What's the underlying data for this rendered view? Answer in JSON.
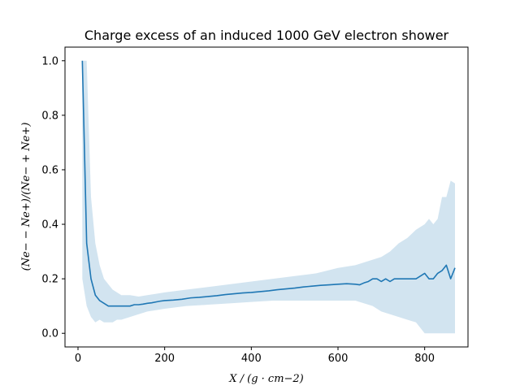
{
  "chart_data": {
    "type": "line",
    "title": "Charge excess of an induced 1000 GeV electron shower",
    "xlabel": "X / (g · cm−2)",
    "ylabel": "(Ne− − Ne+)/(Ne− + Ne+)",
    "xlim": [
      -30,
      900
    ],
    "ylim": [
      -0.05,
      1.05
    ],
    "xticks": [
      0,
      200,
      400,
      600,
      800
    ],
    "yticks": [
      0.0,
      0.2,
      0.4,
      0.6,
      0.8,
      1.0
    ],
    "xtick_labels": [
      "0",
      "200",
      "400",
      "600",
      "800"
    ],
    "ytick_labels": [
      "0.0",
      "0.2",
      "0.4",
      "0.6",
      "0.8",
      "1.0"
    ],
    "grid": false,
    "legend": "none",
    "colors": {
      "line": "#1f77b4",
      "band": "#1f77b4"
    },
    "series": [
      {
        "style": "line",
        "x": [
          10,
          20,
          30,
          40,
          50,
          60,
          70,
          80,
          90,
          100,
          110,
          120,
          130,
          140,
          150,
          160,
          170,
          180,
          190,
          200,
          220,
          240,
          260,
          280,
          300,
          320,
          340,
          360,
          380,
          400,
          420,
          440,
          460,
          480,
          500,
          520,
          540,
          560,
          580,
          600,
          620,
          640,
          650,
          660,
          670,
          680,
          690,
          700,
          710,
          720,
          730,
          740,
          750,
          760,
          770,
          780,
          790,
          800,
          810,
          820,
          830,
          840,
          850,
          860,
          870
        ],
        "y": [
          1.0,
          0.33,
          0.2,
          0.14,
          0.12,
          0.11,
          0.1,
          0.1,
          0.1,
          0.1,
          0.1,
          0.1,
          0.105,
          0.105,
          0.107,
          0.11,
          0.112,
          0.115,
          0.118,
          0.12,
          0.122,
          0.125,
          0.13,
          0.132,
          0.135,
          0.138,
          0.142,
          0.145,
          0.148,
          0.15,
          0.153,
          0.156,
          0.16,
          0.163,
          0.166,
          0.17,
          0.173,
          0.176,
          0.178,
          0.18,
          0.182,
          0.18,
          0.178,
          0.185,
          0.19,
          0.2,
          0.2,
          0.19,
          0.2,
          0.19,
          0.2,
          0.2,
          0.2,
          0.2,
          0.2,
          0.2,
          0.21,
          0.22,
          0.2,
          0.2,
          0.22,
          0.23,
          0.25,
          0.2,
          0.24
        ]
      },
      {
        "style": "band",
        "x": [
          10,
          20,
          30,
          40,
          50,
          60,
          70,
          80,
          90,
          100,
          120,
          140,
          160,
          180,
          200,
          250,
          300,
          350,
          400,
          450,
          500,
          550,
          600,
          640,
          680,
          700,
          720,
          740,
          760,
          780,
          800,
          810,
          820,
          830,
          840,
          850,
          860,
          870
        ],
        "lower": [
          0.2,
          0.1,
          0.06,
          0.04,
          0.05,
          0.04,
          0.04,
          0.04,
          0.05,
          0.05,
          0.06,
          0.07,
          0.08,
          0.085,
          0.09,
          0.1,
          0.105,
          0.11,
          0.115,
          0.12,
          0.12,
          0.12,
          0.12,
          0.12,
          0.1,
          0.08,
          0.07,
          0.06,
          0.05,
          0.04,
          0.0,
          0.0,
          0.0,
          0.0,
          0.0,
          0.0,
          0.0,
          0.0
        ],
        "upper": [
          1.0,
          1.0,
          0.5,
          0.33,
          0.25,
          0.2,
          0.18,
          0.16,
          0.15,
          0.14,
          0.14,
          0.135,
          0.14,
          0.145,
          0.15,
          0.16,
          0.17,
          0.18,
          0.19,
          0.2,
          0.21,
          0.22,
          0.24,
          0.25,
          0.27,
          0.28,
          0.3,
          0.33,
          0.35,
          0.38,
          0.4,
          0.42,
          0.4,
          0.42,
          0.5,
          0.5,
          0.56,
          0.55
        ]
      }
    ]
  }
}
